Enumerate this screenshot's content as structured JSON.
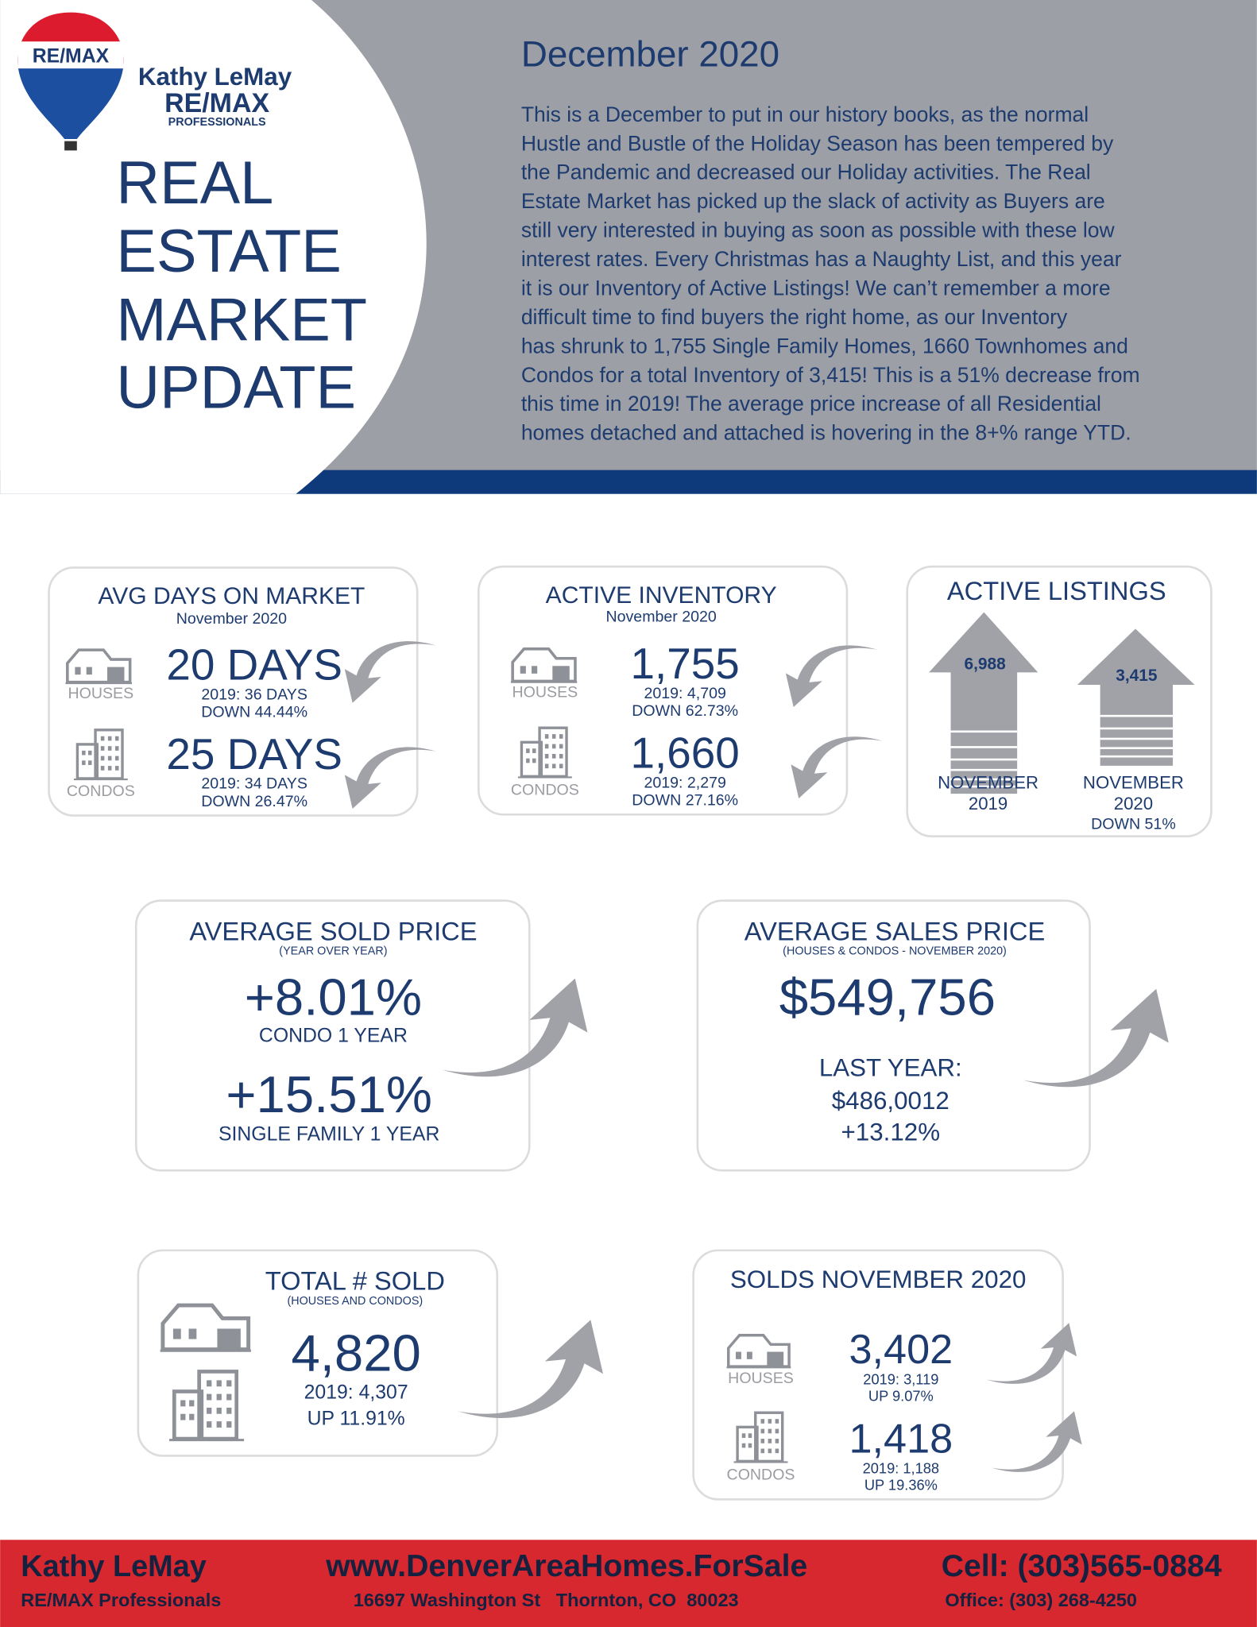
{
  "header": {
    "logo": {
      "balloon_text": "RE/MAX",
      "name": "Kathy LeMay",
      "company": "RE/MAX",
      "division": "PROFESSIONALS"
    },
    "title_lines": [
      "REAL",
      "ESTATE",
      "MARKET",
      "UPDATE"
    ],
    "date": "December 2020",
    "intro_lines": [
      "This is a December to put in our history books, as the normal",
      "Hustle and Bustle of the Holiday Season has been tempered by",
      "the Pandemic and decreased our Holiday activities. The Real",
      "Estate Market has picked up the slack of activity as Buyers are",
      "still very interested in buying as soon as possible with these low",
      "interest rates. Every Christmas has a Naughty List, and this year",
      "it is our Inventory of Active Listings! We can’t remember a more",
      "difficult time to find buyers the right home, as our Inventory",
      "has shrunk to 1,755 Single Family Homes, 1660 Townhomes and",
      "Condos for a total Inventory of 3,415! This is a 51% decrease from",
      "this time in 2019! The average price increase of all Residential",
      "homes detached and attached is hovering in the 8+% range YTD."
    ]
  },
  "cards": {
    "avg_days": {
      "title": "AVG DAYS ON MARKET",
      "subtitle": "November 2020",
      "rows": [
        {
          "icon_label": "HOUSES",
          "value": "20 DAYS",
          "prior": "2019: 36 DAYS",
          "change": "DOWN 44.44%"
        },
        {
          "icon_label": "CONDOS",
          "value": "25 DAYS",
          "prior": "2019: 34 DAYS",
          "change": "DOWN 26.47%"
        }
      ]
    },
    "active_inventory": {
      "title": "ACTIVE INVENTORY",
      "subtitle": "November 2020",
      "rows": [
        {
          "icon_label": "HOUSES",
          "value": "1,755",
          "prior": "2019: 4,709",
          "change": "DOWN 62.73%"
        },
        {
          "icon_label": "CONDOS",
          "value": "1,660",
          "prior": "2019: 2,279",
          "change": "DOWN 27.16%"
        }
      ]
    },
    "active_listings": {
      "title": "ACTIVE LISTINGS",
      "bars": [
        {
          "value": "6,988",
          "label_lines": [
            "NOVEMBER",
            "2019"
          ]
        },
        {
          "value": "3,415",
          "label_lines": [
            "NOVEMBER",
            "2020",
            "DOWN 51%"
          ]
        }
      ]
    },
    "avg_sold_price": {
      "title": "AVERAGE SOLD PRICE",
      "subtitle": "(YEAR OVER YEAR)",
      "items": [
        {
          "value": "+8.01%",
          "label": "CONDO 1 YEAR"
        },
        {
          "value": "+15.51%",
          "label": "SINGLE FAMILY 1 YEAR"
        }
      ]
    },
    "avg_sales_price": {
      "title": "AVERAGE SALES PRICE",
      "subtitle": "(HOUSES & CONDOS - NOVEMBER 2020)",
      "value": "$549,756",
      "last_year_label": "LAST YEAR:",
      "last_year_value": "$486,0012",
      "change": "+13.12%"
    },
    "total_sold": {
      "title": "TOTAL # SOLD",
      "subtitle": "(HOUSES AND CONDOS)",
      "value": "4,820",
      "prior": "2019: 4,307",
      "change": "UP 11.91%"
    },
    "solds_november": {
      "title": "SOLDS NOVEMBER 2020",
      "rows": [
        {
          "icon_label": "HOUSES",
          "value": "3,402",
          "prior": "2019: 3,119",
          "change": "UP 9.07%"
        },
        {
          "icon_label": "CONDOS",
          "value": "1,418",
          "prior": "2019: 1,188",
          "change": "UP 19.36%"
        }
      ]
    }
  },
  "footer": {
    "name": "Kathy LeMay",
    "company": "RE/MAX Professionals",
    "website": "www.DenverAreaHomes.ForSale",
    "address": "16697 Washington St   Thornton, CO  80023",
    "cell": "Cell: (303)565-0884",
    "office": "Office: (303) 268-4250"
  }
}
